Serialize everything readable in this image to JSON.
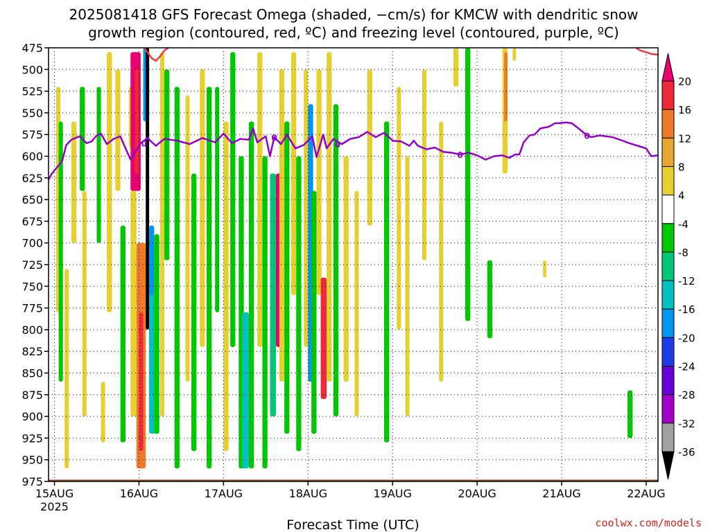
{
  "chart_data": {
    "type": "heatmap",
    "title_line1": "2025081418 GFS Forecast Omega (shaded, −cm/s) for KMCW with dendritic snow",
    "title_line2": "growth region (contoured, red, ºC) and freezing level (contoured, purple, ºC)",
    "xlabel": "Forecast Time (UTC)",
    "ylabel": "",
    "x_ticks": [
      "15AUG",
      "16AUG",
      "17AUG",
      "18AUG",
      "19AUG",
      "20AUG",
      "21AUG",
      "22AUG"
    ],
    "x_tick_days": [
      15,
      16,
      17,
      18,
      19,
      20,
      21,
      22
    ],
    "x_year_label": "2025",
    "xlim": [
      14.93,
      22.14
    ],
    "y_ticks": [
      475,
      500,
      525,
      550,
      575,
      600,
      625,
      650,
      675,
      700,
      725,
      750,
      775,
      800,
      825,
      850,
      875,
      900,
      925,
      950,
      975
    ],
    "ylim": [
      475,
      975
    ],
    "y_axis_reversed": true,
    "grid": true,
    "colorbar": {
      "labels": [
        20,
        16,
        12,
        8,
        4,
        -4,
        -8,
        -12,
        -16,
        -20,
        -24,
        -28,
        -32,
        -36
      ],
      "colors": [
        "#e8006e",
        "#ee2a3a",
        "#ee7a28",
        "#e8a830",
        "#e6d030",
        "#ffffff",
        "#00c800",
        "#00c878",
        "#00c0c0",
        "#0096ee",
        "#1e3ce6",
        "#6a00d8",
        "#a000c8",
        "#a0a0a0",
        "#000000"
      ]
    },
    "freezing_level": {
      "label": "0",
      "color": "#9400c8",
      "day": [
        14.93,
        14.97,
        15.02,
        15.09,
        15.14,
        15.2,
        15.3,
        15.38,
        15.44,
        15.5,
        15.55,
        15.62,
        15.7,
        15.78,
        15.85,
        15.9,
        15.95,
        16.02,
        16.1,
        16.2,
        16.3,
        16.45,
        16.6,
        16.75,
        16.9,
        17.0,
        17.1,
        17.2,
        17.3,
        17.35,
        17.4,
        17.5,
        17.55,
        17.6,
        17.68,
        17.75,
        17.85,
        17.95,
        18.05,
        18.1,
        18.18,
        18.22,
        18.3,
        18.4,
        18.5,
        18.6,
        18.7,
        18.8,
        18.9,
        19.0,
        19.1,
        19.2,
        19.25,
        19.3,
        19.4,
        19.5,
        19.6,
        19.7,
        19.8,
        19.9,
        20.0,
        20.1,
        20.2,
        20.3,
        20.38,
        20.45,
        20.5,
        20.55,
        20.62,
        20.68,
        20.75,
        20.85,
        20.92,
        20.97,
        21.05,
        21.12,
        21.2,
        21.3,
        21.35,
        21.45,
        21.6,
        21.72,
        21.8,
        21.9,
        22.0,
        22.06,
        22.14
      ],
      "pressure": [
        627,
        620,
        614,
        606,
        587,
        581,
        577,
        585,
        583,
        576,
        574,
        586,
        580,
        577,
        593,
        604,
        596,
        585,
        579,
        588,
        580,
        582,
        586,
        579,
        584,
        574,
        585,
        580,
        581,
        568,
        584,
        577,
        600,
        578,
        586,
        575,
        591,
        587,
        577,
        601,
        575,
        591,
        580,
        586,
        580,
        578,
        572,
        578,
        573,
        582,
        583,
        588,
        582,
        588,
        592,
        590,
        595,
        596,
        598,
        596,
        599,
        604,
        600,
        599,
        602,
        598,
        598,
        584,
        576,
        575,
        568,
        566,
        562,
        562,
        561,
        562,
        568,
        576,
        578,
        576,
        578,
        582,
        585,
        588,
        591,
        600,
        599
      ]
    },
    "snow_growth_region": {
      "color": "#ee3a3a",
      "segments": [
        {
          "day": [
            16.06,
            16.1,
            16.15,
            16.2,
            16.25,
            16.3,
            16.35
          ],
          "pressure": [
            475,
            480,
            487,
            490,
            485,
            478,
            475
          ]
        },
        {
          "day": [
            21.88,
            21.93,
            22.0,
            22.06,
            22.14
          ],
          "pressure": [
            475,
            478,
            480,
            482,
            483
          ]
        }
      ]
    },
    "terrain_level": 973
  }
}
